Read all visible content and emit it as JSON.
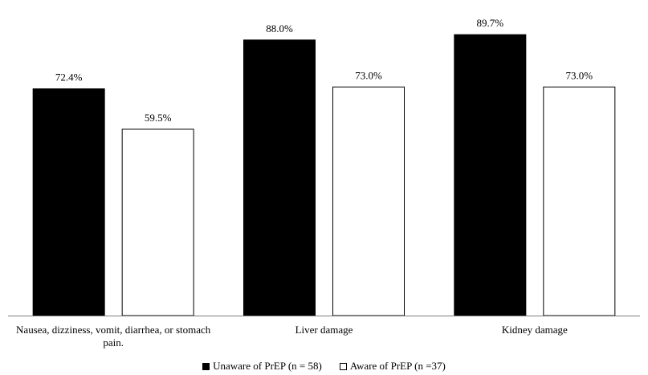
{
  "chart_data": {
    "type": "bar",
    "categories": [
      [
        "Nausea, dizziness, vomit, diarrhea, or stomach",
        "pain."
      ],
      [
        "Liver damage"
      ],
      [
        "Kidney damage"
      ]
    ],
    "series": [
      {
        "name": "Unaware of PrEP (n = 58)",
        "color": "#000000",
        "values": [
          72.4,
          88.0,
          89.7
        ],
        "labels": [
          "72.4%",
          "88.0%",
          "89.7%"
        ]
      },
      {
        "name": "Aware of PrEP (n =37)",
        "color": "#ffffff",
        "values": [
          59.5,
          73.0,
          73.0
        ],
        "labels": [
          "59.5%",
          "73.0%",
          "73.0%"
        ]
      }
    ],
    "ylim": [
      0,
      100
    ],
    "grid": false,
    "legend_position": "bottom"
  }
}
